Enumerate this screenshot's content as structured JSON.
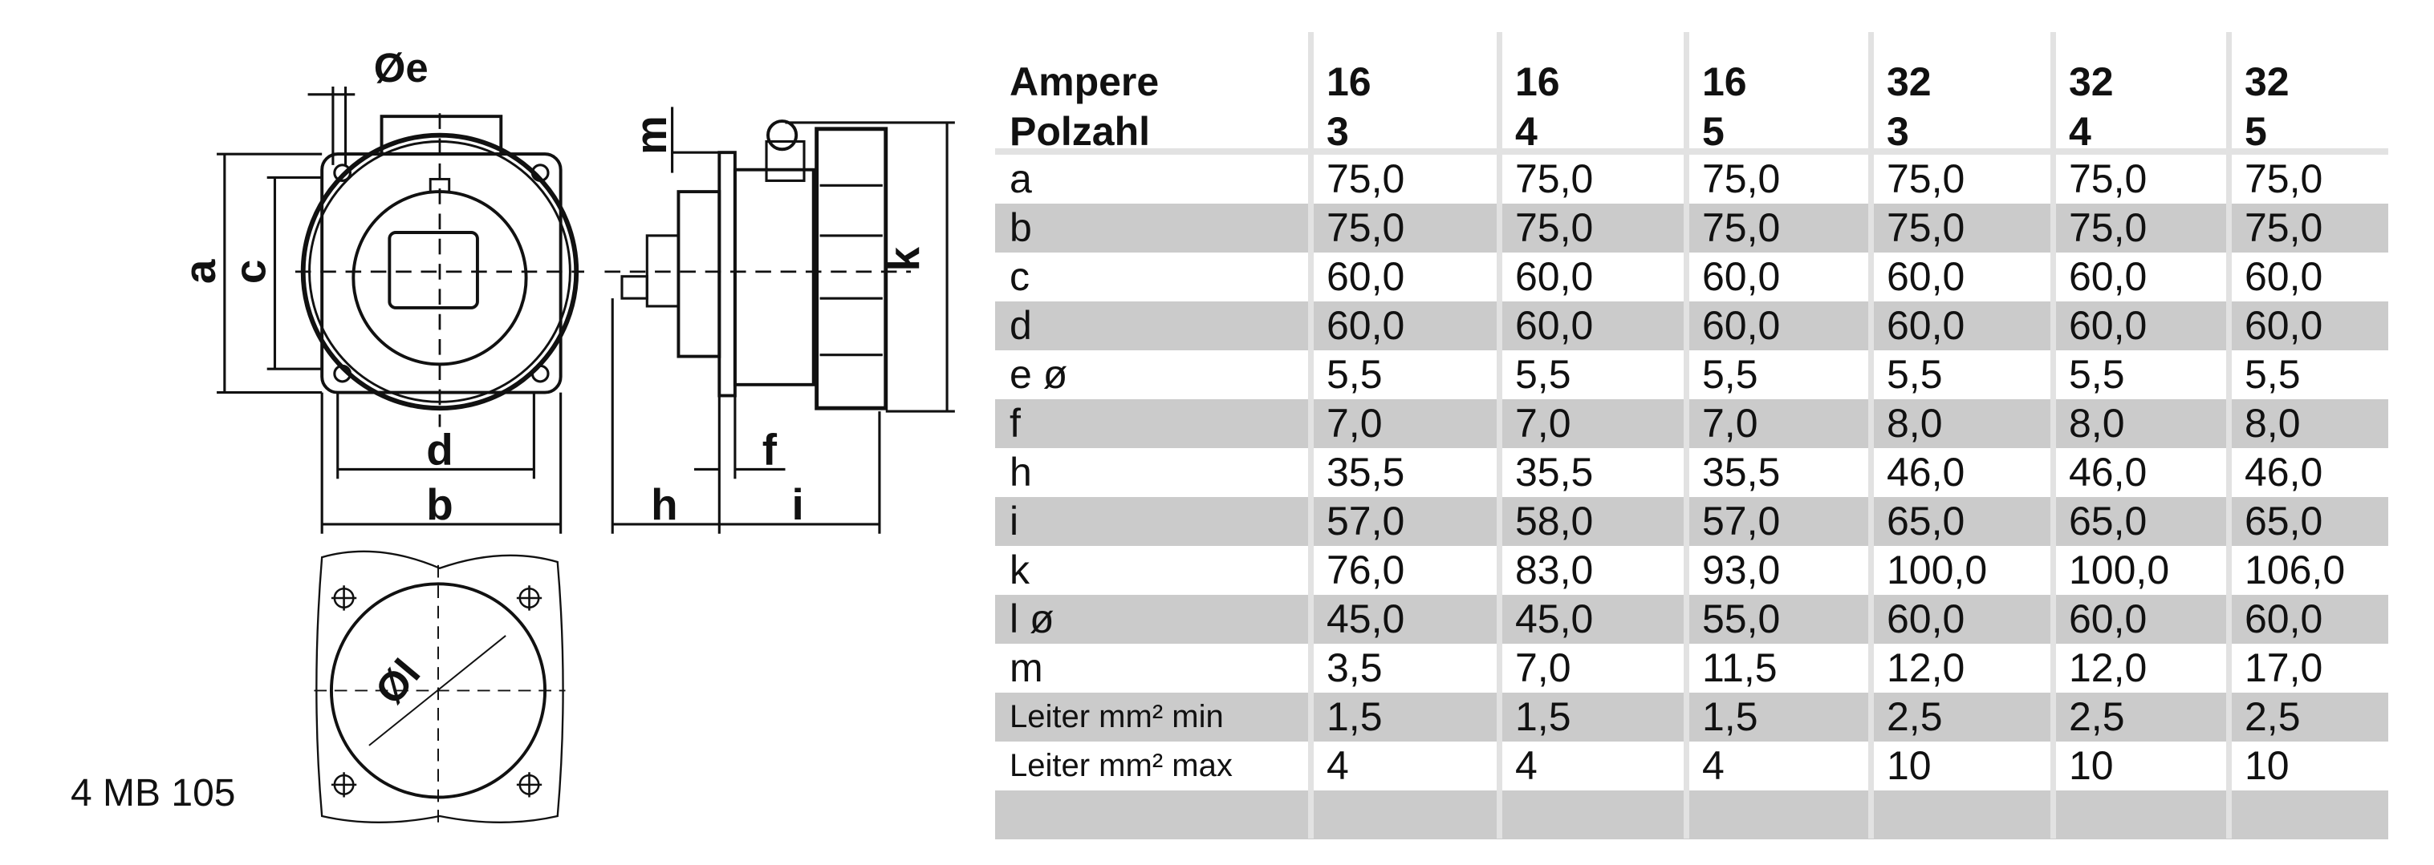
{
  "drawing": {
    "labels": {
      "e": "Øe",
      "a": "a",
      "c": "c",
      "d": "d",
      "b": "b",
      "m": "m",
      "k": "k",
      "f": "f",
      "h": "h",
      "i": "i",
      "l": "Øl"
    },
    "model": "4 MB 105"
  },
  "table": {
    "header_rows": [
      {
        "label": "Ampere",
        "values": [
          "16",
          "16",
          "16",
          "32",
          "32",
          "32"
        ]
      },
      {
        "label": "Polzahl",
        "values": [
          "3",
          "4",
          "5",
          "3",
          "4",
          "5"
        ]
      }
    ],
    "rows": [
      {
        "label": "a",
        "values": [
          "75,0",
          "75,0",
          "75,0",
          "75,0",
          "75,0",
          "75,0"
        ]
      },
      {
        "label": "b",
        "values": [
          "75,0",
          "75,0",
          "75,0",
          "75,0",
          "75,0",
          "75,0"
        ]
      },
      {
        "label": "c",
        "values": [
          "60,0",
          "60,0",
          "60,0",
          "60,0",
          "60,0",
          "60,0"
        ]
      },
      {
        "label": "d",
        "values": [
          "60,0",
          "60,0",
          "60,0",
          "60,0",
          "60,0",
          "60,0"
        ]
      },
      {
        "label": "e ø",
        "values": [
          "5,5",
          "5,5",
          "5,5",
          "5,5",
          "5,5",
          "5,5"
        ]
      },
      {
        "label": "f",
        "values": [
          "7,0",
          "7,0",
          "7,0",
          "8,0",
          "8,0",
          "8,0"
        ]
      },
      {
        "label": "h",
        "values": [
          "35,5",
          "35,5",
          "35,5",
          "46,0",
          "46,0",
          "46,0"
        ]
      },
      {
        "label": "i",
        "values": [
          "57,0",
          "58,0",
          "57,0",
          "65,0",
          "65,0",
          "65,0"
        ]
      },
      {
        "label": "k",
        "values": [
          "76,0",
          "83,0",
          "93,0",
          "100,0",
          "100,0",
          "106,0"
        ]
      },
      {
        "label": "l ø",
        "values": [
          "45,0",
          "45,0",
          "55,0",
          "60,0",
          "60,0",
          "60,0"
        ]
      },
      {
        "label": "m",
        "values": [
          "3,5",
          "7,0",
          "11,5",
          "12,0",
          "12,0",
          "17,0"
        ]
      },
      {
        "label": "Leiter mm² min",
        "values": [
          "1,5",
          "1,5",
          "1,5",
          "2,5",
          "2,5",
          "2,5"
        ]
      },
      {
        "label": "Leiter mm² max",
        "values": [
          "4",
          "4",
          "4",
          "10",
          "10",
          "10"
        ]
      },
      {
        "label": "",
        "values": [
          "",
          "",
          "",
          "",
          "",
          ""
        ]
      }
    ],
    "stripe_color": "#cbcbcb",
    "rule_color": "#e2e2e2"
  }
}
